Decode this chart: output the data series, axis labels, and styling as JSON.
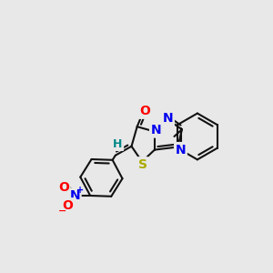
{
  "bg_color": "#e8e8e8",
  "bond_color": "#111111",
  "bond_width": 1.5,
  "atom_colors": {
    "O": "#ff0000",
    "N": "#0000ee",
    "S": "#aaaa00",
    "H": "#008888",
    "NO2_N": "#0000ee",
    "NO2_O": "#ff0000"
  },
  "fig_size": [
    3.0,
    3.0
  ],
  "dpi": 100
}
